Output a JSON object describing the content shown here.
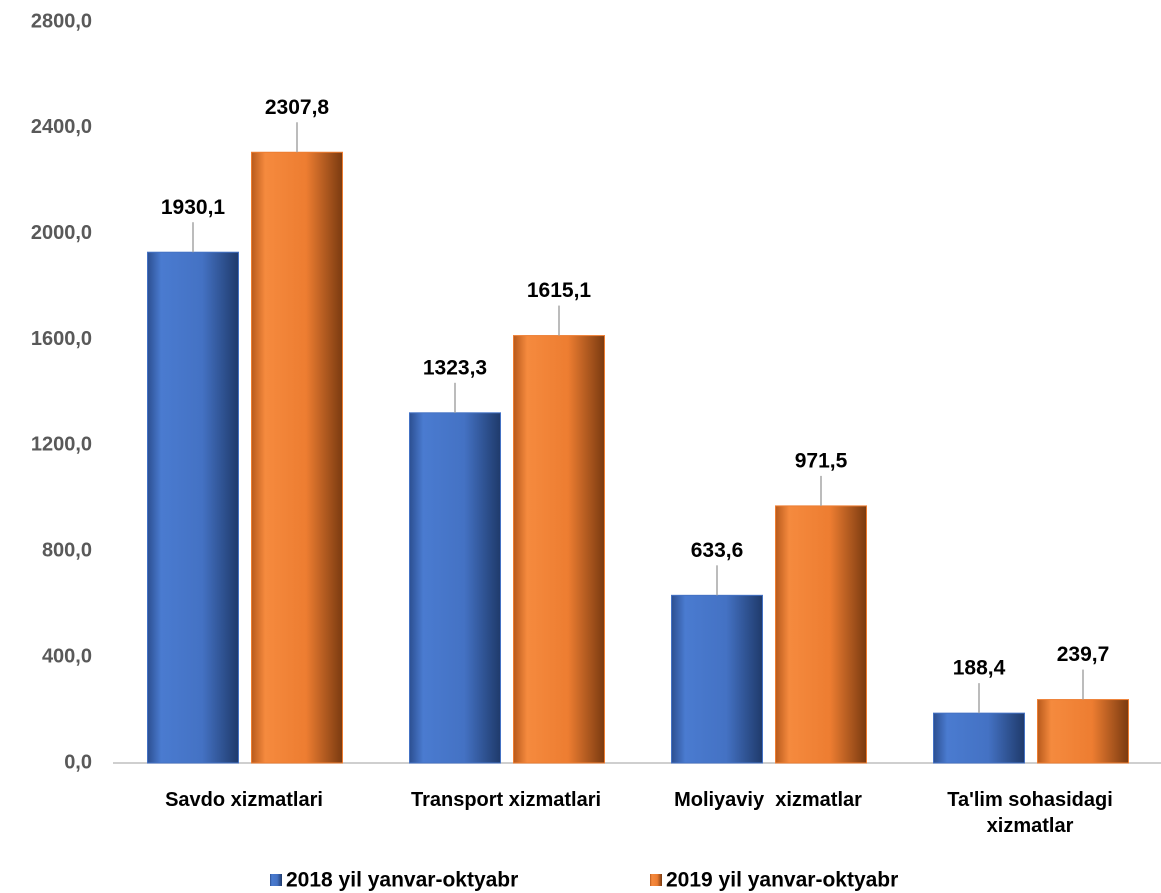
{
  "chart_data": {
    "type": "bar",
    "categories": [
      "Savdo xizmatlari",
      "Transport xizmatlari",
      "Moliyaviy  xizmatlar",
      "Ta'lim sohasidagi xizmatlar"
    ],
    "series": [
      {
        "name": "2018 yil yanvar-oktyabr",
        "color": "#4472c4",
        "values": [
          1930.1,
          1323.3,
          633.6,
          188.4
        ],
        "value_labels": [
          "1930,1",
          "1323,3",
          "633,6",
          "188,4"
        ]
      },
      {
        "name": "2019 yil yanvar-oktyabr",
        "color": "#ed7d31",
        "values": [
          2307.8,
          1615.1,
          971.5,
          239.7
        ],
        "value_labels": [
          "2307,8",
          "1615,1",
          "971,5",
          "239,7"
        ]
      }
    ],
    "ylim": [
      0,
      2800
    ],
    "yticks": [
      {
        "value": 0,
        "label": "0,0"
      },
      {
        "value": 400,
        "label": "400,0"
      },
      {
        "value": 800,
        "label": "800,0"
      },
      {
        "value": 1200,
        "label": "1200,0"
      },
      {
        "value": 1600,
        "label": "1600,0"
      },
      {
        "value": 2000,
        "label": "2000,0"
      },
      {
        "value": 2400,
        "label": "2400,0"
      },
      {
        "value": 2800,
        "label": "2800,0"
      }
    ],
    "grid": false,
    "legend": "bottom"
  }
}
